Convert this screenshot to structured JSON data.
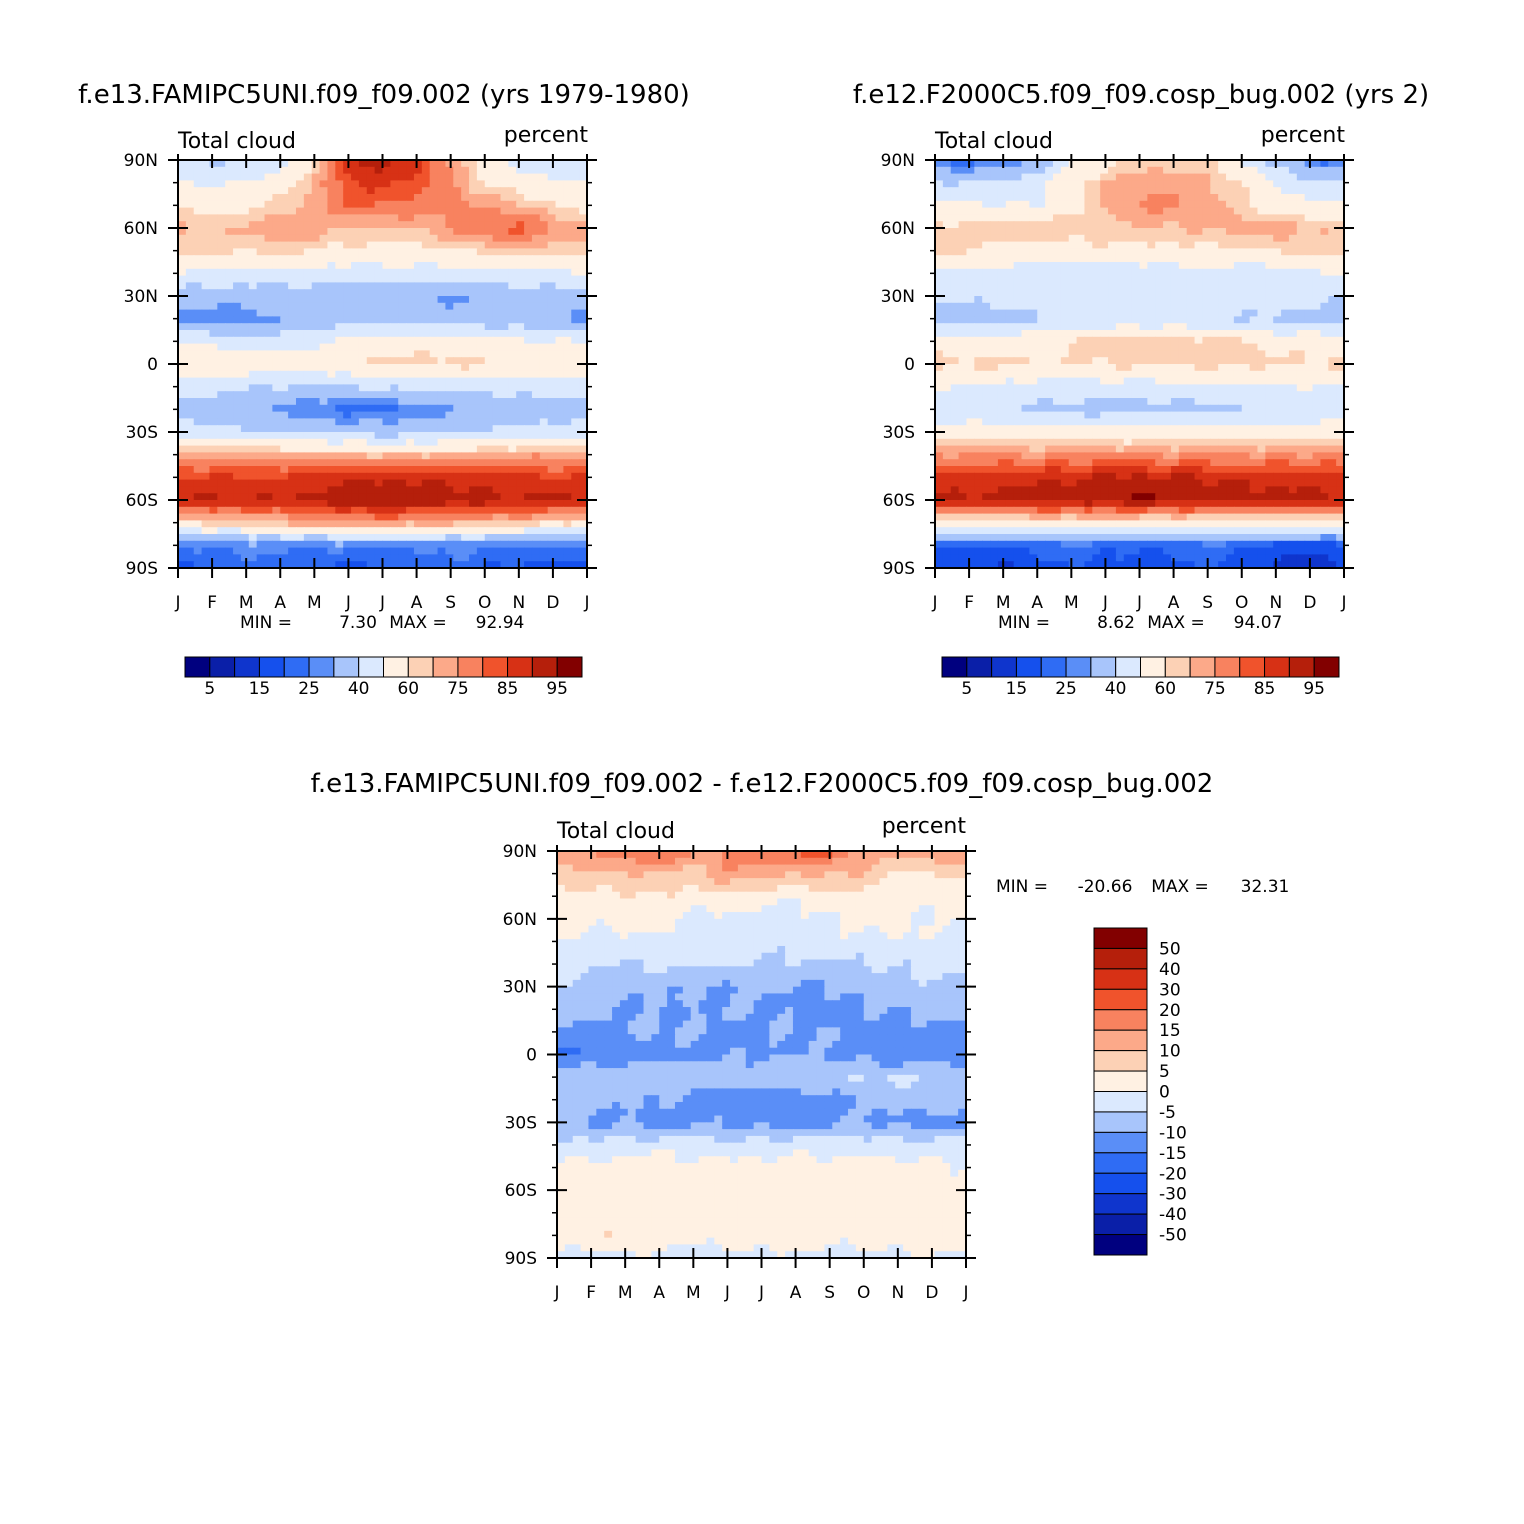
{
  "chart_data": [
    {
      "type": "heatmap",
      "title": "f.e13.FAMIPC5UNI.f09_f09.002 (yrs 1979-1980)",
      "left_label": "Total cloud",
      "right_label": "percent",
      "x_tick_labels": [
        "J",
        "F",
        "M",
        "A",
        "M",
        "J",
        "J",
        "A",
        "S",
        "O",
        "N",
        "D",
        "J"
      ],
      "y_tick_labels": [
        "90N",
        "60N",
        "30N",
        "0",
        "30S",
        "60S",
        "90S"
      ],
      "xlabel": "",
      "ylabel": "",
      "stats": {
        "min_label": "MIN =",
        "min": "7.30",
        "max_label": "MAX =",
        "max": "92.94"
      },
      "colorbar_labels": [
        "5",
        "15",
        "25",
        "40",
        "60",
        "75",
        "85",
        "95"
      ],
      "latitudes": [
        90,
        80,
        70,
        60,
        50,
        40,
        30,
        20,
        10,
        0,
        -10,
        -20,
        -30,
        -40,
        -50,
        -60,
        -70,
        -80,
        -90
      ],
      "months": [
        "Jan",
        "Feb",
        "Mar",
        "Apr",
        "May",
        "Jun",
        "Jul",
        "Aug",
        "Sep",
        "Oct",
        "Nov",
        "Dec",
        "Jan"
      ],
      "values": [
        [
          40,
          38,
          40,
          45,
          60,
          85,
          88,
          82,
          70,
          55,
          45,
          40,
          40
        ],
        [
          50,
          48,
          50,
          55,
          65,
          80,
          82,
          78,
          70,
          60,
          55,
          52,
          50
        ],
        [
          58,
          57,
          58,
          62,
          68,
          75,
          75,
          72,
          72,
          70,
          65,
          60,
          58
        ],
        [
          65,
          64,
          66,
          70,
          68,
          66,
          65,
          66,
          70,
          75,
          78,
          70,
          65
        ],
        [
          62,
          61,
          61,
          62,
          60,
          58,
          57,
          58,
          60,
          62,
          64,
          63,
          62
        ],
        [
          50,
          48,
          47,
          46,
          45,
          45,
          46,
          46,
          45,
          45,
          46,
          48,
          50
        ],
        [
          35,
          33,
          34,
          35,
          35,
          34,
          33,
          30,
          28,
          33,
          35,
          36,
          35
        ],
        [
          28,
          25,
          26,
          30,
          33,
          35,
          36,
          36,
          35,
          33,
          32,
          30,
          28
        ],
        [
          50,
          47,
          46,
          45,
          48,
          52,
          55,
          56,
          55,
          55,
          52,
          50,
          50
        ],
        [
          60,
          58,
          57,
          55,
          57,
          60,
          62,
          62,
          62,
          61,
          60,
          59,
          60
        ],
        [
          45,
          44,
          42,
          40,
          38,
          40,
          42,
          42,
          42,
          43,
          44,
          45,
          45
        ],
        [
          35,
          33,
          30,
          28,
          25,
          22,
          22,
          24,
          28,
          32,
          35,
          35,
          35
        ],
        [
          45,
          45,
          42,
          40,
          38,
          37,
          36,
          36,
          38,
          40,
          42,
          44,
          45
        ],
        [
          68,
          68,
          68,
          67,
          66,
          65,
          65,
          65,
          66,
          67,
          68,
          68,
          68
        ],
        [
          80,
          80,
          80,
          81,
          82,
          84,
          84,
          84,
          83,
          82,
          81,
          80,
          80
        ],
        [
          85,
          86,
          85,
          85,
          87,
          89,
          90,
          89,
          88,
          87,
          86,
          86,
          85
        ],
        [
          60,
          62,
          62,
          65,
          68,
          70,
          70,
          68,
          68,
          66,
          64,
          62,
          60
        ],
        [
          25,
          26,
          28,
          26,
          25,
          27,
          25,
          26,
          27,
          25,
          24,
          25,
          25
        ],
        [
          18,
          20,
          22,
          24,
          20,
          18,
          20,
          22,
          24,
          20,
          18,
          17,
          18
        ]
      ]
    },
    {
      "type": "heatmap",
      "title": "f.e12.F2000C5.f09_f09.cosp_bug.002 (yrs 2)",
      "left_label": "Total cloud",
      "right_label": "percent",
      "x_tick_labels": [
        "J",
        "F",
        "M",
        "A",
        "M",
        "J",
        "J",
        "A",
        "S",
        "O",
        "N",
        "D",
        "J"
      ],
      "y_tick_labels": [
        "90N",
        "60N",
        "30N",
        "0",
        "30S",
        "60S",
        "90S"
      ],
      "xlabel": "",
      "ylabel": "",
      "stats": {
        "min_label": "MIN =",
        "min": "8.62",
        "max_label": "MAX =",
        "max": "94.07"
      },
      "colorbar_labels": [
        "5",
        "15",
        "25",
        "40",
        "60",
        "75",
        "85",
        "95"
      ],
      "latitudes": [
        90,
        80,
        70,
        60,
        50,
        40,
        30,
        20,
        10,
        0,
        -10,
        -20,
        -30,
        -40,
        -50,
        -60,
        -70,
        -80,
        -90
      ],
      "months": [
        "Jan",
        "Feb",
        "Mar",
        "Apr",
        "May",
        "Jun",
        "Jul",
        "Aug",
        "Sep",
        "Oct",
        "Nov",
        "Dec",
        "Jan"
      ],
      "values": [
        [
          22,
          22,
          24,
          30,
          48,
          58,
          62,
          62,
          60,
          50,
          35,
          25,
          22
        ],
        [
          40,
          40,
          42,
          46,
          58,
          65,
          68,
          68,
          66,
          60,
          50,
          42,
          40
        ],
        [
          52,
          52,
          50,
          50,
          55,
          65,
          70,
          72,
          68,
          62,
          55,
          52,
          52
        ],
        [
          62,
          63,
          64,
          65,
          64,
          64,
          64,
          65,
          66,
          68,
          70,
          66,
          62
        ],
        [
          62,
          60,
          58,
          56,
          56,
          58,
          58,
          58,
          58,
          58,
          60,
          62,
          62
        ],
        [
          50,
          48,
          46,
          44,
          42,
          42,
          44,
          46,
          46,
          45,
          45,
          48,
          50
        ],
        [
          42,
          42,
          44,
          46,
          47,
          47,
          46,
          45,
          44,
          44,
          44,
          42,
          42
        ],
        [
          35,
          34,
          36,
          38,
          40,
          42,
          44,
          44,
          42,
          40,
          38,
          38,
          35
        ],
        [
          55,
          55,
          56,
          58,
          60,
          62,
          62,
          62,
          62,
          61,
          58,
          56,
          55
        ],
        [
          62,
          62,
          62,
          60,
          60,
          61,
          62,
          62,
          62,
          62,
          61,
          61,
          62
        ],
        [
          50,
          50,
          48,
          46,
          46,
          46,
          46,
          46,
          47,
          48,
          49,
          50,
          50
        ],
        [
          42,
          42,
          40,
          38,
          37,
          36,
          36,
          37,
          38,
          40,
          41,
          42,
          42
        ],
        [
          55,
          55,
          55,
          54,
          54,
          54,
          54,
          54,
          55,
          55,
          55,
          55,
          55
        ],
        [
          70,
          70,
          70,
          70,
          70,
          70,
          70,
          70,
          70,
          70,
          70,
          70,
          70
        ],
        [
          82,
          82,
          83,
          84,
          85,
          86,
          86,
          86,
          85,
          84,
          83,
          82,
          82
        ],
        [
          86,
          86,
          87,
          88,
          89,
          90,
          91,
          90,
          89,
          88,
          87,
          87,
          86
        ],
        [
          55,
          55,
          56,
          58,
          58,
          57,
          56,
          56,
          56,
          55,
          55,
          55,
          55
        ],
        [
          20,
          20,
          18,
          22,
          24,
          22,
          20,
          22,
          24,
          22,
          18,
          16,
          20
        ],
        [
          15,
          16,
          14,
          18,
          20,
          18,
          16,
          18,
          20,
          16,
          14,
          12,
          15
        ]
      ]
    },
    {
      "type": "heatmap",
      "title": "f.e13.FAMIPC5UNI.f09_f09.002 - f.e12.F2000C5.f09_f09.cosp_bug.002",
      "left_label": "Total cloud",
      "right_label": "percent",
      "x_tick_labels": [
        "J",
        "F",
        "M",
        "A",
        "M",
        "J",
        "J",
        "A",
        "S",
        "O",
        "N",
        "D",
        "J"
      ],
      "y_tick_labels": [
        "90N",
        "60N",
        "30N",
        "0",
        "30S",
        "60S",
        "90S"
      ],
      "xlabel": "",
      "ylabel": "",
      "stats": {
        "min_label": "MIN =",
        "min": "-20.66",
        "max_label": "MAX =",
        "max": "32.31"
      },
      "colorbar_labels": [
        "50",
        "40",
        "30",
        "20",
        "15",
        "10",
        "5",
        "0",
        "-5",
        "-10",
        "-15",
        "-20",
        "-30",
        "-40",
        "-50"
      ],
      "latitudes": [
        90,
        80,
        70,
        60,
        50,
        40,
        30,
        20,
        10,
        0,
        -10,
        -20,
        -30,
        -40,
        -50,
        -60,
        -70,
        -80,
        -90
      ],
      "months": [
        "Jan",
        "Feb",
        "Mar",
        "Apr",
        "May",
        "Jun",
        "Jul",
        "Aug",
        "Sep",
        "Oct",
        "Nov",
        "Dec",
        "Jan"
      ],
      "values": [
        [
          14,
          15,
          18,
          22,
          15,
          16,
          20,
          22,
          22,
          12,
          12,
          16,
          14
        ],
        [
          8,
          9,
          10,
          9,
          7,
          14,
          12,
          10,
          11,
          9,
          5,
          4,
          8
        ],
        [
          3,
          4,
          4,
          5,
          3,
          4,
          2,
          1,
          3,
          4,
          3,
          2,
          3
        ],
        [
          2,
          1,
          2,
          3,
          -1,
          -2,
          -3,
          -2,
          -1,
          2,
          3,
          -2,
          2
        ],
        [
          0,
          -1,
          -2,
          -1,
          -2,
          -3,
          -3,
          -3,
          -2,
          -2,
          -1,
          0,
          0
        ],
        [
          -3,
          -4,
          -5,
          -4,
          -4,
          -5,
          -5,
          -6,
          -6,
          -5,
          -4,
          -4,
          -3
        ],
        [
          -6,
          -7,
          -8,
          -9,
          -10,
          -10,
          -9,
          -10,
          -10,
          -8,
          -7,
          -6,
          -6
        ],
        [
          -8,
          -9,
          -10,
          -11,
          -10,
          -10,
          -10,
          -11,
          -12,
          -11,
          -10,
          -9,
          -8
        ],
        [
          -12,
          -11,
          -10,
          -9,
          -10,
          -11,
          -11,
          -10,
          -10,
          -11,
          -12,
          -12,
          -12
        ],
        [
          -16,
          -14,
          -13,
          -12,
          -12,
          -11,
          -10,
          -10,
          -11,
          -12,
          -15,
          -13,
          -16
        ],
        [
          -6,
          -6,
          -7,
          -6,
          -6,
          -6,
          -7,
          -6,
          -6,
          -5,
          -4,
          -6,
          -6
        ],
        [
          -8,
          -8,
          -9,
          -10,
          -12,
          -13,
          -14,
          -13,
          -12,
          -10,
          -8,
          -8,
          -8
        ],
        [
          -10,
          -11,
          -11,
          -12,
          -11,
          -11,
          -12,
          -12,
          -11,
          -10,
          -11,
          -12,
          -10
        ],
        [
          -3,
          -3,
          -3,
          -2,
          -2,
          -3,
          -3,
          -2,
          -2,
          -2,
          -3,
          -3,
          -3
        ],
        [
          1,
          2,
          2,
          2,
          2,
          2,
          2,
          2,
          2,
          2,
          2,
          1,
          1
        ],
        [
          2,
          3,
          3,
          4,
          4,
          4,
          3,
          3,
          4,
          4,
          3,
          3,
          2
        ],
        [
          2,
          3,
          3,
          3,
          3,
          3,
          3,
          2,
          3,
          2,
          2,
          3,
          2
        ],
        [
          3,
          3,
          5,
          4,
          2,
          3,
          3,
          3,
          2,
          3,
          4,
          5,
          3
        ],
        [
          -2,
          -2,
          -1,
          -2,
          -3,
          -2,
          -1,
          -2,
          -2,
          -3,
          -2,
          -1,
          -2
        ]
      ]
    }
  ]
}
